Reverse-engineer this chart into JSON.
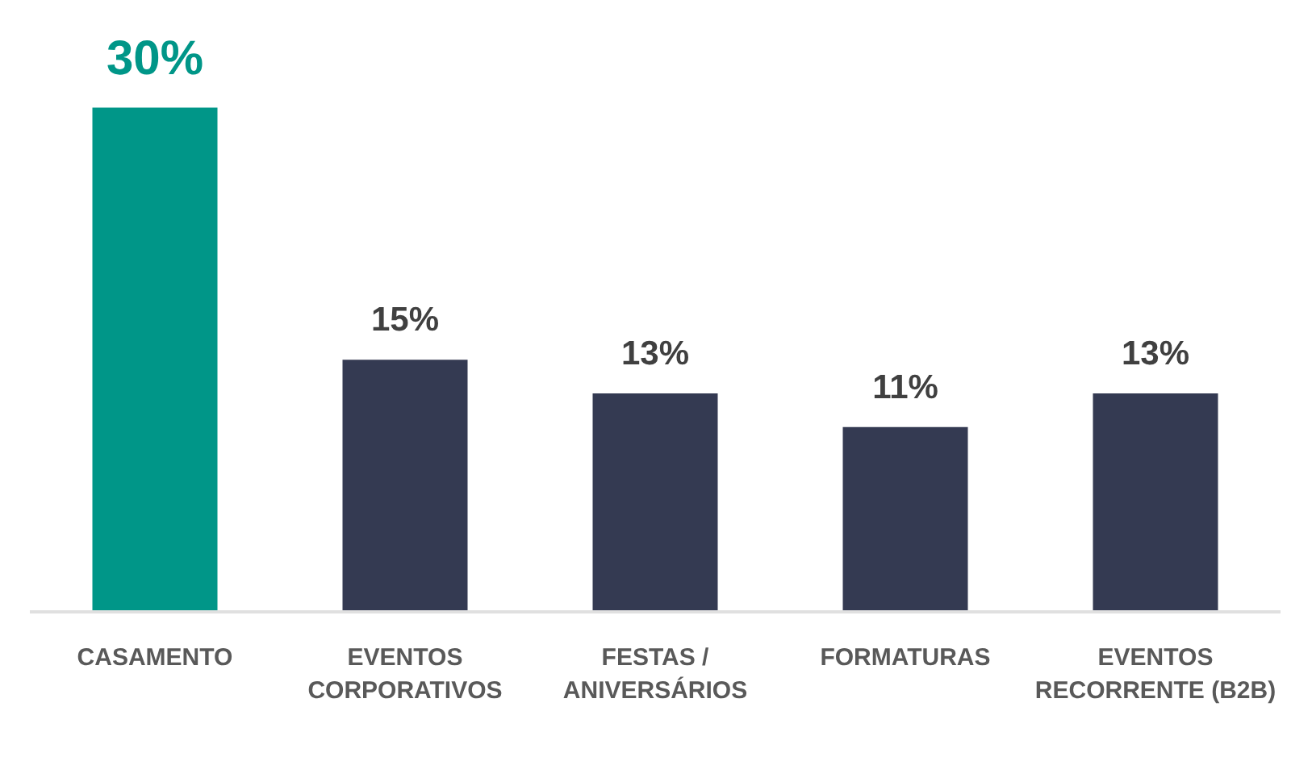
{
  "chart_data": {
    "type": "bar",
    "categories": [
      "CASAMENTO",
      "EVENTOS CORPORATIVOS",
      "FESTAS / ANIVERSÁRIOS",
      "FORMATURAS",
      "EVENTOS RECORRENTE (B2B)"
    ],
    "values": [
      30,
      15,
      13,
      11,
      13
    ],
    "colors": [
      "#009688",
      "#343a52",
      "#343a52",
      "#343a52",
      "#343a52"
    ],
    "value_labels": [
      "30%",
      "15%",
      "13%",
      "11%",
      "13%"
    ]
  }
}
